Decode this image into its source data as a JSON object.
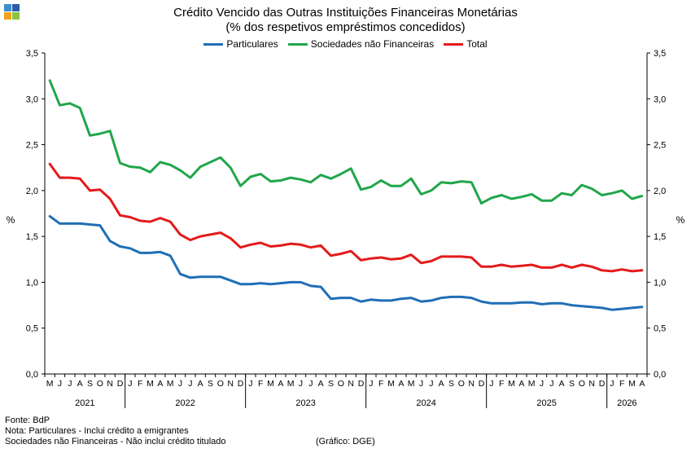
{
  "logo": {
    "icon": "bdp-logo-icon",
    "colors": [
      "#3a8fd1",
      "#f2a21a",
      "#8ac43f",
      "#2f5da8"
    ]
  },
  "header": {
    "title": "Crédito Vencido das Outras Instituições Financeiras Monetárias",
    "subtitle": "(% dos respetivos empréstimos concedidos)"
  },
  "footer": {
    "source": "Fonte: BdP",
    "note1": "Nota: Particulares - Inclui crédito a emigrantes",
    "note2": "Sociedades não Financeiras - Não inclui crédito titulado",
    "credit": "(Gráfico: DGE)"
  },
  "chart_data": {
    "type": "line",
    "ylabel": "%",
    "ylim": [
      0,
      3.5
    ],
    "yticks": [
      "0,0",
      "0,5",
      "1,0",
      "1,5",
      "2,0",
      "2,5",
      "3,0",
      "3,5"
    ],
    "ytick_values": [
      0,
      0.5,
      1.0,
      1.5,
      2.0,
      2.5,
      3.0,
      3.5
    ],
    "x": [
      "M",
      "J",
      "J",
      "A",
      "S",
      "O",
      "N",
      "D",
      "J",
      "F",
      "M",
      "A",
      "M",
      "J",
      "J",
      "A",
      "S",
      "O",
      "N",
      "D",
      "J",
      "F",
      "M",
      "A",
      "M",
      "J",
      "J",
      "A",
      "S",
      "O",
      "N",
      "D",
      "J",
      "F",
      "M",
      "A",
      "M",
      "J",
      "J",
      "A",
      "S",
      "O",
      "N",
      "D",
      "J",
      "F",
      "M",
      "A",
      "M",
      "J",
      "J",
      "A",
      "S",
      "O",
      "N",
      "D",
      "J",
      "F",
      "M",
      "A"
    ],
    "years": [
      {
        "label": "2021",
        "start": 0,
        "end": 7
      },
      {
        "label": "2022",
        "start": 8,
        "end": 19
      },
      {
        "label": "2023",
        "start": 20,
        "end": 31
      },
      {
        "label": "2024",
        "start": 32,
        "end": 43
      },
      {
        "label": "2025",
        "start": 44,
        "end": 55
      },
      {
        "label": "2026",
        "start": 56,
        "end": 59
      }
    ],
    "legend_position": "top",
    "grid": false,
    "series": [
      {
        "name": "Particulares",
        "color": "#1f6fb5",
        "values": [
          1.72,
          1.64,
          1.64,
          1.64,
          1.63,
          1.62,
          1.45,
          1.39,
          1.37,
          1.32,
          1.32,
          1.33,
          1.29,
          1.09,
          1.05,
          1.06,
          1.06,
          1.06,
          1.02,
          0.98,
          0.98,
          0.99,
          0.98,
          0.99,
          1.0,
          1.0,
          0.96,
          0.95,
          0.82,
          0.83,
          0.83,
          0.79,
          0.81,
          0.8,
          0.8,
          0.82,
          0.83,
          0.79,
          0.8,
          0.83,
          0.84,
          0.84,
          0.83,
          0.79,
          0.77,
          0.77,
          0.77,
          0.78,
          0.78,
          0.76,
          0.77,
          0.77,
          0.75,
          0.74,
          0.73,
          0.72,
          0.7,
          0.71,
          0.72,
          0.73
        ]
      },
      {
        "name": "Sociedades não Financeiras",
        "color": "#21a64a",
        "values": [
          3.2,
          2.93,
          2.95,
          2.9,
          2.6,
          2.62,
          2.65,
          2.3,
          2.26,
          2.25,
          2.2,
          2.31,
          2.28,
          2.22,
          2.14,
          2.26,
          2.31,
          2.36,
          2.25,
          2.05,
          2.15,
          2.18,
          2.1,
          2.11,
          2.14,
          2.12,
          2.09,
          2.17,
          2.13,
          2.18,
          2.24,
          2.01,
          2.04,
          2.11,
          2.05,
          2.05,
          2.13,
          1.96,
          2.0,
          2.09,
          2.08,
          2.1,
          2.09,
          1.86,
          1.92,
          1.95,
          1.91,
          1.93,
          1.96,
          1.89,
          1.89,
          1.97,
          1.95,
          2.06,
          2.02,
          1.95,
          1.97,
          2.0,
          1.91,
          1.94
        ]
      },
      {
        "name": "Total",
        "color": "#e41a1a",
        "values": [
          2.29,
          2.14,
          2.14,
          2.13,
          2.0,
          2.01,
          1.91,
          1.73,
          1.71,
          1.67,
          1.66,
          1.7,
          1.66,
          1.52,
          1.46,
          1.5,
          1.52,
          1.54,
          1.48,
          1.38,
          1.41,
          1.43,
          1.39,
          1.4,
          1.42,
          1.41,
          1.38,
          1.4,
          1.29,
          1.31,
          1.34,
          1.24,
          1.26,
          1.27,
          1.25,
          1.26,
          1.3,
          1.21,
          1.23,
          1.28,
          1.28,
          1.28,
          1.27,
          1.17,
          1.17,
          1.19,
          1.17,
          1.18,
          1.19,
          1.16,
          1.16,
          1.19,
          1.16,
          1.19,
          1.17,
          1.13,
          1.12,
          1.14,
          1.12,
          1.13
        ]
      }
    ]
  }
}
